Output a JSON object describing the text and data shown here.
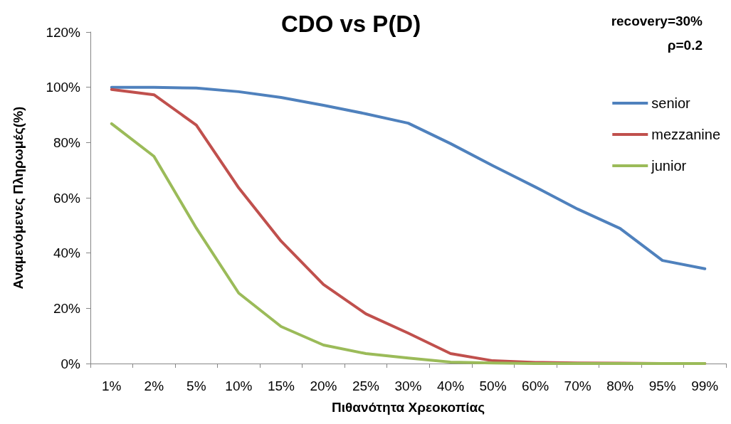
{
  "chart_data": {
    "type": "line",
    "title": "CDO vs P(D)",
    "xlabel": "Πιθανότητα Χρεοκοπίας",
    "ylabel": "Αναμενόμενες Πληρωμές(%)",
    "annotations": [
      "recovery=30%",
      "ρ=0.2"
    ],
    "categories": [
      "1%",
      "2%",
      "5%",
      "10%",
      "15%",
      "20%",
      "25%",
      "30%",
      "40%",
      "50%",
      "60%",
      "70%",
      "80%",
      "95%",
      "99%"
    ],
    "series": [
      {
        "name": "senior",
        "color": "#4f81bd",
        "values": [
          100,
          100,
          99.7,
          98.4,
          96.3,
          93.5,
          90.4,
          87,
          79.6,
          71.6,
          63.9,
          55.9,
          48.9,
          37.3,
          34.3
        ]
      },
      {
        "name": "mezzanine",
        "color": "#c0504d",
        "values": [
          99.2,
          97.3,
          86.3,
          63.6,
          44.3,
          28.6,
          18,
          11,
          3.6,
          1,
          0.4,
          0.2,
          0.1,
          0,
          0
        ]
      },
      {
        "name": "junior",
        "color": "#9bbb59",
        "values": [
          86.8,
          75,
          49,
          25.5,
          13.4,
          6.7,
          3.6,
          2,
          0.5,
          0.2,
          0,
          0,
          0,
          0,
          0
        ]
      }
    ],
    "ylim": [
      0,
      120
    ],
    "yticks": [
      {
        "value": 0,
        "label": "0%"
      },
      {
        "value": 20,
        "label": "20%"
      },
      {
        "value": 40,
        "label": "40%"
      },
      {
        "value": 60,
        "label": "60%"
      },
      {
        "value": 80,
        "label": "80%"
      },
      {
        "value": 100,
        "label": "100%"
      },
      {
        "value": 120,
        "label": "120%"
      }
    ],
    "legend": "right",
    "grid": false,
    "marker": "none",
    "line_style": "solid"
  }
}
